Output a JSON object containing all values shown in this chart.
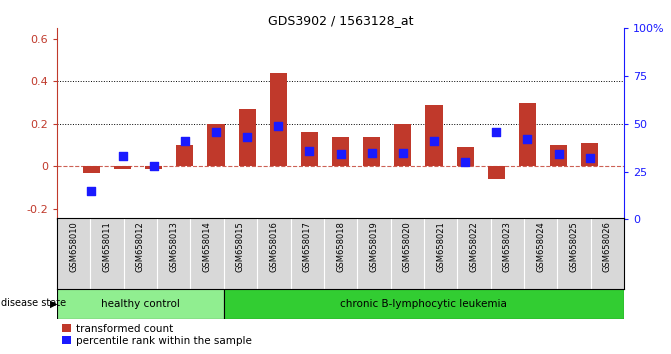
{
  "title": "GDS3902 / 1563128_at",
  "samples": [
    "GSM658010",
    "GSM658011",
    "GSM658012",
    "GSM658013",
    "GSM658014",
    "GSM658015",
    "GSM658016",
    "GSM658017",
    "GSM658018",
    "GSM658019",
    "GSM658020",
    "GSM658021",
    "GSM658022",
    "GSM658023",
    "GSM658024",
    "GSM658025",
    "GSM658026"
  ],
  "bar_values": [
    -0.03,
    -0.01,
    -0.01,
    0.1,
    0.2,
    0.27,
    0.44,
    0.16,
    0.14,
    0.14,
    0.2,
    0.29,
    0.09,
    -0.06,
    0.3,
    0.1,
    0.11
  ],
  "dot_values": [
    15,
    33,
    28,
    41,
    46,
    43,
    49,
    36,
    34,
    35,
    35,
    41,
    30,
    46,
    42,
    34,
    32
  ],
  "bar_color": "#c0392b",
  "dot_color": "#1a1aff",
  "zero_line_color": "#c0392b",
  "ylim_left": [
    -0.25,
    0.65
  ],
  "ylim_right": [
    0,
    100
  ],
  "yticks_left": [
    -0.2,
    0.0,
    0.2,
    0.4,
    0.6
  ],
  "yticks_right": [
    0,
    25,
    50,
    75,
    100
  ],
  "hlines": [
    0.2,
    0.4
  ],
  "healthy_control_label": "healthy control",
  "leukemia_label": "chronic B-lymphocytic leukemia",
  "disease_state_label": "disease state",
  "healthy_count": 5,
  "total_count": 17,
  "healthy_color": "#90EE90",
  "leukemia_color": "#32CD32",
  "legend_bar": "transformed count",
  "legend_dot": "percentile rank within the sample",
  "bar_width": 0.55,
  "dot_size": 40,
  "bg_color": "#d8d8d8",
  "spine_color": "#000000"
}
